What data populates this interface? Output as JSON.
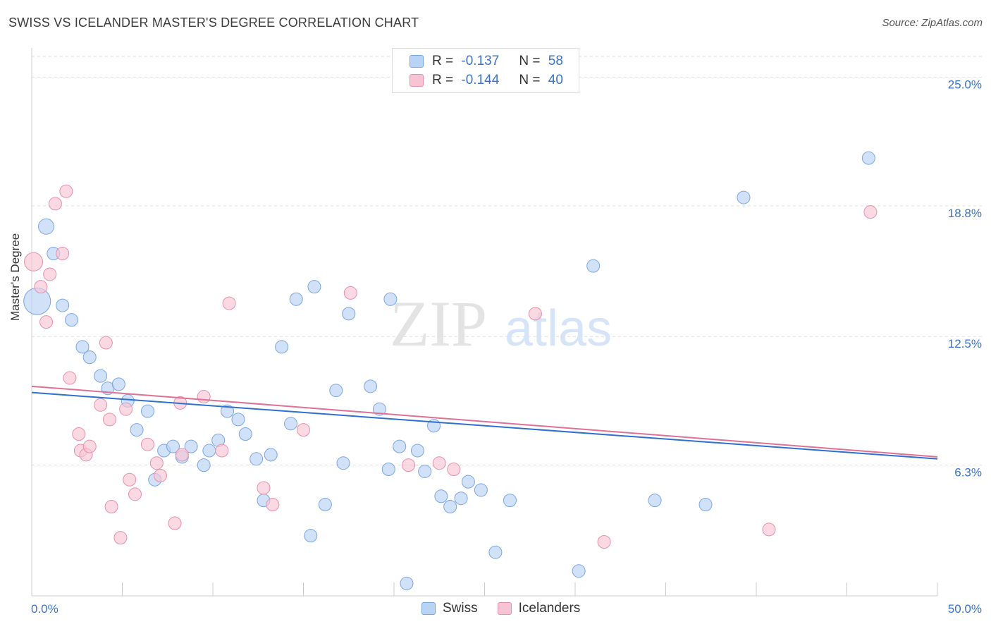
{
  "title": "SWISS VS ICELANDER MASTER'S DEGREE CORRELATION CHART",
  "source": "Source: ZipAtlas.com",
  "watermark": {
    "zip": "ZIP",
    "atlas": "atlas"
  },
  "colors": {
    "swiss_fill": "#b9d3f5",
    "swiss_stroke": "#7aa6e0",
    "swiss_line": "#2f6fd0",
    "ice_fill": "#f8c4d4",
    "ice_stroke": "#e88fab",
    "ice_line": "#e07096",
    "tick_label": "#3a73c9",
    "grid": "#dddddd"
  },
  "legend": {
    "rows": [
      {
        "r_label": "R =",
        "r_value": "-0.137",
        "n_label": "N =",
        "n_value": "58"
      },
      {
        "r_label": "R =",
        "r_value": "-0.144",
        "n_label": "N =",
        "n_value": "40"
      }
    ]
  },
  "chart_data": {
    "type": "scatter",
    "xlabel": "",
    "ylabel": "Master's Degree",
    "xlim": [
      0,
      50
    ],
    "ylim": [
      0,
      26
    ],
    "x_tick_labels": [
      "0.0%",
      "50.0%"
    ],
    "y_ticks": [
      6.3,
      12.5,
      18.8,
      25.0
    ],
    "y_tick_labels": [
      "6.3%",
      "12.5%",
      "18.8%",
      "25.0%"
    ],
    "grid": true,
    "legend_position": "top-center",
    "series": [
      {
        "name": "Swiss",
        "points": [
          [
            0.8,
            17.8
          ],
          [
            1.2,
            16.5
          ],
          [
            1.7,
            14.0
          ],
          [
            2.2,
            13.3
          ],
          [
            2.8,
            12.0
          ],
          [
            3.2,
            11.5
          ],
          [
            3.8,
            10.6
          ],
          [
            4.2,
            10.0
          ],
          [
            4.8,
            10.2
          ],
          [
            5.3,
            9.4
          ],
          [
            5.8,
            8.0
          ],
          [
            6.4,
            8.9
          ],
          [
            6.8,
            5.6
          ],
          [
            7.3,
            7.0
          ],
          [
            7.8,
            7.2
          ],
          [
            8.3,
            6.7
          ],
          [
            8.8,
            7.2
          ],
          [
            9.5,
            6.3
          ],
          [
            9.8,
            7.0
          ],
          [
            10.3,
            7.5
          ],
          [
            10.8,
            8.9
          ],
          [
            11.4,
            8.5
          ],
          [
            11.8,
            7.8
          ],
          [
            12.4,
            6.6
          ],
          [
            12.8,
            4.6
          ],
          [
            13.2,
            6.8
          ],
          [
            13.8,
            12.0
          ],
          [
            14.3,
            8.3
          ],
          [
            14.6,
            14.3
          ],
          [
            15.4,
            2.9
          ],
          [
            15.6,
            14.9
          ],
          [
            16.2,
            4.4
          ],
          [
            16.8,
            9.9
          ],
          [
            17.2,
            6.4
          ],
          [
            17.5,
            13.6
          ],
          [
            18.7,
            10.1
          ],
          [
            19.2,
            9.0
          ],
          [
            19.7,
            6.1
          ],
          [
            19.8,
            14.3
          ],
          [
            20.3,
            7.2
          ],
          [
            20.7,
            0.6
          ],
          [
            21.3,
            7.0
          ],
          [
            21.7,
            6.0
          ],
          [
            22.2,
            8.2
          ],
          [
            22.6,
            4.8
          ],
          [
            23.1,
            4.3
          ],
          [
            23.7,
            4.7
          ],
          [
            24.1,
            5.5
          ],
          [
            24.8,
            5.1
          ],
          [
            25.6,
            2.1
          ],
          [
            26.4,
            4.6
          ],
          [
            30.2,
            1.2
          ],
          [
            31.0,
            15.9
          ],
          [
            34.4,
            4.6
          ],
          [
            37.2,
            4.4
          ],
          [
            39.3,
            19.2
          ],
          [
            46.2,
            21.1
          ],
          [
            0.3,
            14.2
          ]
        ],
        "sizes": [
          11,
          9,
          9,
          9,
          9,
          9,
          9,
          9,
          9,
          9,
          9,
          9,
          9,
          9,
          9,
          9,
          9,
          9,
          9,
          9,
          9,
          9,
          9,
          9,
          9,
          9,
          9,
          9,
          9,
          9,
          9,
          9,
          9,
          9,
          9,
          9,
          9,
          9,
          9,
          9,
          9,
          9,
          9,
          9,
          9,
          9,
          9,
          9,
          9,
          9,
          9,
          9,
          9,
          9,
          9,
          9,
          9,
          19
        ]
      },
      {
        "name": "Icelanders",
        "points": [
          [
            0.1,
            16.1
          ],
          [
            0.5,
            14.9
          ],
          [
            0.8,
            13.2
          ],
          [
            1.0,
            15.5
          ],
          [
            1.3,
            18.9
          ],
          [
            1.7,
            16.5
          ],
          [
            1.9,
            19.5
          ],
          [
            2.1,
            10.5
          ],
          [
            2.6,
            7.8
          ],
          [
            2.7,
            7.0
          ],
          [
            3.0,
            6.8
          ],
          [
            3.2,
            7.2
          ],
          [
            3.8,
            9.2
          ],
          [
            4.1,
            12.2
          ],
          [
            4.3,
            8.5
          ],
          [
            4.4,
            4.3
          ],
          [
            4.9,
            2.8
          ],
          [
            5.2,
            9.0
          ],
          [
            5.4,
            5.6
          ],
          [
            5.7,
            4.9
          ],
          [
            6.4,
            7.3
          ],
          [
            6.9,
            6.4
          ],
          [
            7.1,
            5.8
          ],
          [
            7.9,
            3.5
          ],
          [
            8.2,
            9.3
          ],
          [
            8.3,
            6.8
          ],
          [
            9.5,
            9.6
          ],
          [
            10.5,
            7.0
          ],
          [
            10.9,
            14.1
          ],
          [
            12.8,
            5.2
          ],
          [
            13.3,
            4.4
          ],
          [
            15.0,
            8.0
          ],
          [
            17.6,
            14.6
          ],
          [
            20.8,
            6.3
          ],
          [
            22.5,
            6.4
          ],
          [
            23.3,
            6.1
          ],
          [
            27.8,
            13.6
          ],
          [
            31.6,
            2.6
          ],
          [
            40.7,
            3.2
          ],
          [
            46.3,
            18.5
          ]
        ],
        "sizes": [
          13,
          9,
          9,
          9,
          9,
          9,
          9,
          9,
          9,
          9,
          9,
          9,
          9,
          9,
          9,
          9,
          9,
          9,
          9,
          9,
          9,
          9,
          9,
          9,
          9,
          9,
          9,
          9,
          9,
          9,
          9,
          9,
          9,
          9,
          9,
          9,
          9,
          9,
          9,
          9
        ]
      }
    ],
    "trend_lines": [
      {
        "name": "Swiss",
        "x": [
          0,
          50
        ],
        "y": [
          9.8,
          6.6
        ]
      },
      {
        "name": "Icelanders",
        "x": [
          0,
          50
        ],
        "y": [
          10.1,
          6.7
        ]
      }
    ]
  }
}
